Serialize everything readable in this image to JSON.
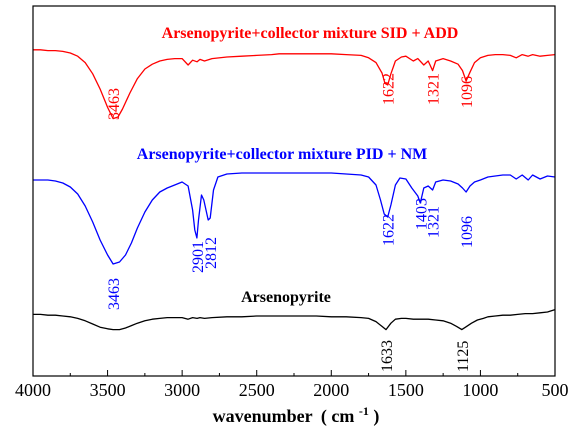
{
  "chart_data": {
    "type": "line",
    "title": "",
    "xlabel": "wavenumber",
    "xlabel_unit": "( cm",
    "xlabel_sup": "-1",
    "xlabel_close": ")",
    "ylabel": "",
    "xlim": [
      4000,
      500
    ],
    "x_reversed": true,
    "grid": false,
    "x_ticks": [
      "4000",
      "3500",
      "3000",
      "2500",
      "2000",
      "1500",
      "1000",
      "500"
    ],
    "series": [
      {
        "name": "Arsenopyrite+collector mixture SID + ADD",
        "color": "#ff0000",
        "points": [
          [
            4000,
            0.06
          ],
          [
            3950,
            0.06
          ],
          [
            3900,
            0.07
          ],
          [
            3850,
            0.07
          ],
          [
            3800,
            0.08
          ],
          [
            3750,
            0.1
          ],
          [
            3700,
            0.14
          ],
          [
            3650,
            0.22
          ],
          [
            3600,
            0.36
          ],
          [
            3550,
            0.55
          ],
          [
            3500,
            0.78
          ],
          [
            3463,
            0.92
          ],
          [
            3430,
            0.9
          ],
          [
            3400,
            0.8
          ],
          [
            3350,
            0.6
          ],
          [
            3300,
            0.42
          ],
          [
            3250,
            0.3
          ],
          [
            3200,
            0.24
          ],
          [
            3150,
            0.2
          ],
          [
            3100,
            0.18
          ],
          [
            3050,
            0.17
          ],
          [
            3000,
            0.17
          ],
          [
            2960,
            0.25
          ],
          [
            2930,
            0.19
          ],
          [
            2900,
            0.21
          ],
          [
            2880,
            0.18
          ],
          [
            2850,
            0.2
          ],
          [
            2800,
            0.17
          ],
          [
            2700,
            0.15
          ],
          [
            2600,
            0.14
          ],
          [
            2500,
            0.13
          ],
          [
            2400,
            0.12
          ],
          [
            2350,
            0.11
          ],
          [
            2300,
            0.11
          ],
          [
            2200,
            0.11
          ],
          [
            2100,
            0.11
          ],
          [
            2000,
            0.11
          ],
          [
            1900,
            0.12
          ],
          [
            1800,
            0.13
          ],
          [
            1750,
            0.16
          ],
          [
            1700,
            0.22
          ],
          [
            1660,
            0.35
          ],
          [
            1640,
            0.48
          ],
          [
            1622,
            0.5
          ],
          [
            1600,
            0.36
          ],
          [
            1570,
            0.2
          ],
          [
            1530,
            0.15
          ],
          [
            1500,
            0.14
          ],
          [
            1450,
            0.2
          ],
          [
            1420,
            0.17
          ],
          [
            1380,
            0.25
          ],
          [
            1350,
            0.2
          ],
          [
            1321,
            0.32
          ],
          [
            1300,
            0.2
          ],
          [
            1250,
            0.17
          ],
          [
            1200,
            0.2
          ],
          [
            1150,
            0.24
          ],
          [
            1120,
            0.32
          ],
          [
            1096,
            0.45
          ],
          [
            1070,
            0.34
          ],
          [
            1040,
            0.22
          ],
          [
            1000,
            0.16
          ],
          [
            950,
            0.13
          ],
          [
            900,
            0.12
          ],
          [
            850,
            0.12
          ],
          [
            800,
            0.13
          ],
          [
            760,
            0.16
          ],
          [
            720,
            0.12
          ],
          [
            680,
            0.14
          ],
          [
            650,
            0.12
          ],
          [
            600,
            0.14
          ],
          [
            550,
            0.13
          ],
          [
            500,
            0.12
          ]
        ]
      },
      {
        "name": "Arsenopyrite+collector mixture  PID + NM",
        "color": "#0000ff",
        "points": [
          [
            4000,
            0.1
          ],
          [
            3950,
            0.1
          ],
          [
            3900,
            0.1
          ],
          [
            3850,
            0.11
          ],
          [
            3800,
            0.13
          ],
          [
            3750,
            0.17
          ],
          [
            3700,
            0.24
          ],
          [
            3650,
            0.36
          ],
          [
            3600,
            0.52
          ],
          [
            3550,
            0.7
          ],
          [
            3500,
            0.85
          ],
          [
            3463,
            0.94
          ],
          [
            3420,
            0.92
          ],
          [
            3380,
            0.85
          ],
          [
            3340,
            0.73
          ],
          [
            3300,
            0.58
          ],
          [
            3250,
            0.42
          ],
          [
            3200,
            0.3
          ],
          [
            3150,
            0.22
          ],
          [
            3100,
            0.18
          ],
          [
            3050,
            0.15
          ],
          [
            3000,
            0.12
          ],
          [
            2960,
            0.16
          ],
          [
            2930,
            0.4
          ],
          [
            2915,
            0.6
          ],
          [
            2901,
            0.68
          ],
          [
            2890,
            0.5
          ],
          [
            2870,
            0.25
          ],
          [
            2855,
            0.3
          ],
          [
            2840,
            0.4
          ],
          [
            2825,
            0.5
          ],
          [
            2812,
            0.48
          ],
          [
            2790,
            0.2
          ],
          [
            2760,
            0.07
          ],
          [
            2700,
            0.04
          ],
          [
            2600,
            0.03
          ],
          [
            2500,
            0.03
          ],
          [
            2400,
            0.03
          ],
          [
            2300,
            0.03
          ],
          [
            2200,
            0.03
          ],
          [
            2100,
            0.03
          ],
          [
            2000,
            0.03
          ],
          [
            1900,
            0.04
          ],
          [
            1800,
            0.05
          ],
          [
            1750,
            0.07
          ],
          [
            1700,
            0.15
          ],
          [
            1670,
            0.3
          ],
          [
            1645,
            0.44
          ],
          [
            1622,
            0.47
          ],
          [
            1600,
            0.35
          ],
          [
            1570,
            0.15
          ],
          [
            1540,
            0.08
          ],
          [
            1500,
            0.09
          ],
          [
            1460,
            0.18
          ],
          [
            1440,
            0.22
          ],
          [
            1420,
            0.26
          ],
          [
            1403,
            0.33
          ],
          [
            1380,
            0.18
          ],
          [
            1350,
            0.16
          ],
          [
            1321,
            0.2
          ],
          [
            1300,
            0.12
          ],
          [
            1250,
            0.1
          ],
          [
            1200,
            0.11
          ],
          [
            1150,
            0.14
          ],
          [
            1120,
            0.18
          ],
          [
            1096,
            0.22
          ],
          [
            1070,
            0.16
          ],
          [
            1040,
            0.12
          ],
          [
            1000,
            0.1
          ],
          [
            950,
            0.07
          ],
          [
            900,
            0.06
          ],
          [
            850,
            0.05
          ],
          [
            800,
            0.05
          ],
          [
            760,
            0.09
          ],
          [
            720,
            0.05
          ],
          [
            680,
            0.1
          ],
          [
            650,
            0.05
          ],
          [
            600,
            0.09
          ],
          [
            550,
            0.06
          ],
          [
            500,
            0.07
          ]
        ]
      },
      {
        "name": "Arsenopyrite",
        "color": "#000000",
        "points": [
          [
            4000,
            0.03
          ],
          [
            3950,
            0.03
          ],
          [
            3900,
            0.04
          ],
          [
            3850,
            0.04
          ],
          [
            3800,
            0.05
          ],
          [
            3750,
            0.06
          ],
          [
            3700,
            0.08
          ],
          [
            3650,
            0.11
          ],
          [
            3600,
            0.15
          ],
          [
            3550,
            0.19
          ],
          [
            3500,
            0.21
          ],
          [
            3463,
            0.22
          ],
          [
            3420,
            0.22
          ],
          [
            3380,
            0.2
          ],
          [
            3340,
            0.17
          ],
          [
            3300,
            0.14
          ],
          [
            3250,
            0.11
          ],
          [
            3200,
            0.09
          ],
          [
            3150,
            0.08
          ],
          [
            3100,
            0.07
          ],
          [
            3050,
            0.07
          ],
          [
            3000,
            0.07
          ],
          [
            2960,
            0.09
          ],
          [
            2930,
            0.07
          ],
          [
            2900,
            0.08
          ],
          [
            2880,
            0.07
          ],
          [
            2850,
            0.08
          ],
          [
            2800,
            0.07
          ],
          [
            2700,
            0.06
          ],
          [
            2600,
            0.06
          ],
          [
            2500,
            0.05
          ],
          [
            2400,
            0.05
          ],
          [
            2300,
            0.05
          ],
          [
            2200,
            0.05
          ],
          [
            2100,
            0.05
          ],
          [
            2000,
            0.06
          ],
          [
            1900,
            0.06
          ],
          [
            1800,
            0.07
          ],
          [
            1750,
            0.08
          ],
          [
            1700,
            0.12
          ],
          [
            1660,
            0.18
          ],
          [
            1633,
            0.22
          ],
          [
            1600,
            0.14
          ],
          [
            1570,
            0.09
          ],
          [
            1530,
            0.08
          ],
          [
            1500,
            0.08
          ],
          [
            1450,
            0.09
          ],
          [
            1400,
            0.09
          ],
          [
            1350,
            0.09
          ],
          [
            1300,
            0.1
          ],
          [
            1250,
            0.11
          ],
          [
            1200,
            0.14
          ],
          [
            1160,
            0.18
          ],
          [
            1125,
            0.22
          ],
          [
            1100,
            0.19
          ],
          [
            1060,
            0.14
          ],
          [
            1020,
            0.1
          ],
          [
            980,
            0.08
          ],
          [
            950,
            0.06
          ],
          [
            900,
            0.05
          ],
          [
            850,
            0.04
          ],
          [
            800,
            0.04
          ],
          [
            750,
            0.03
          ],
          [
            700,
            0.02
          ],
          [
            650,
            0.02
          ],
          [
            600,
            0.01
          ],
          [
            550,
            0.0
          ],
          [
            500,
            -0.03
          ]
        ]
      }
    ],
    "peak_labels": [
      {
        "text": "3463",
        "series": 0,
        "x": 3463
      },
      {
        "text": "1622",
        "series": 0,
        "x": 1622
      },
      {
        "text": "1321",
        "series": 0,
        "x": 1321
      },
      {
        "text": "1096",
        "series": 0,
        "x": 1096
      },
      {
        "text": "3463",
        "series": 1,
        "x": 3463
      },
      {
        "text": "2901",
        "series": 1,
        "x": 2901
      },
      {
        "text": "2812",
        "series": 1,
        "x": 2812
      },
      {
        "text": "1622",
        "series": 1,
        "x": 1622
      },
      {
        "text": "1403",
        "series": 1,
        "x": 1403
      },
      {
        "text": "1321",
        "series": 1,
        "x": 1321
      },
      {
        "text": "1096",
        "series": 1,
        "x": 1096
      },
      {
        "text": "1633",
        "series": 2,
        "x": 1633
      },
      {
        "text": "1125",
        "series": 2,
        "x": 1125
      }
    ]
  }
}
